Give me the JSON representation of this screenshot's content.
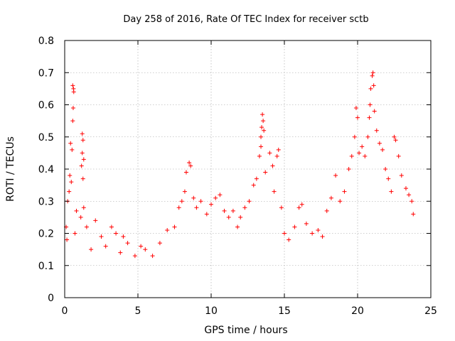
{
  "chart_data": {
    "type": "scatter",
    "title": "Day 258 of 2016, Rate Of TEC Index for receiver sctb",
    "xlabel": "GPS time / hours",
    "ylabel": "ROTI / TECUs",
    "xlim": [
      0,
      25
    ],
    "ylim": [
      0,
      0.8
    ],
    "x_ticks": [
      0,
      5,
      10,
      15,
      20,
      25
    ],
    "y_ticks": [
      0,
      0.1,
      0.2,
      0.3,
      0.4,
      0.5,
      0.6,
      0.7,
      0.8
    ],
    "x_tick_labels": [
      "0",
      "5",
      "10",
      "15",
      "20",
      "25"
    ],
    "y_tick_labels": [
      "0",
      "0.1",
      "0.2",
      "0.3",
      "0.4",
      "0.5",
      "0.6",
      "0.7",
      "0.8"
    ],
    "grid": true,
    "marker": "+",
    "color": "#ff0000",
    "series": [
      {
        "name": "ROTI",
        "points": [
          [
            0.55,
            0.66
          ],
          [
            0.6,
            0.65
          ],
          [
            0.62,
            0.64
          ],
          [
            0.58,
            0.59
          ],
          [
            0.55,
            0.55
          ],
          [
            0.4,
            0.48
          ],
          [
            0.5,
            0.46
          ],
          [
            0.35,
            0.38
          ],
          [
            0.45,
            0.36
          ],
          [
            0.3,
            0.33
          ],
          [
            1.2,
            0.51
          ],
          [
            1.25,
            0.49
          ],
          [
            1.2,
            0.45
          ],
          [
            1.3,
            0.43
          ],
          [
            1.15,
            0.41
          ],
          [
            1.25,
            0.37
          ],
          [
            1.3,
            0.28
          ],
          [
            0.2,
            0.3
          ],
          [
            0.8,
            0.27
          ],
          [
            1.1,
            0.25
          ],
          [
            0.1,
            0.22
          ],
          [
            0.15,
            0.18
          ],
          [
            0.7,
            0.2
          ],
          [
            1.5,
            0.22
          ],
          [
            2.1,
            0.24
          ],
          [
            2.5,
            0.19
          ],
          [
            3.2,
            0.22
          ],
          [
            3.5,
            0.2
          ],
          [
            4.0,
            0.19
          ],
          [
            4.3,
            0.17
          ],
          [
            1.8,
            0.15
          ],
          [
            2.8,
            0.16
          ],
          [
            3.8,
            0.14
          ],
          [
            4.8,
            0.13
          ],
          [
            5.2,
            0.16
          ],
          [
            5.5,
            0.15
          ],
          [
            6.0,
            0.13
          ],
          [
            6.5,
            0.17
          ],
          [
            7.0,
            0.21
          ],
          [
            7.5,
            0.22
          ],
          [
            7.8,
            0.28
          ],
          [
            8.0,
            0.3
          ],
          [
            8.2,
            0.33
          ],
          [
            8.5,
            0.42
          ],
          [
            8.6,
            0.41
          ],
          [
            8.3,
            0.39
          ],
          [
            8.8,
            0.31
          ],
          [
            9.0,
            0.28
          ],
          [
            9.3,
            0.3
          ],
          [
            9.7,
            0.26
          ],
          [
            10.0,
            0.29
          ],
          [
            10.3,
            0.31
          ],
          [
            10.6,
            0.32
          ],
          [
            10.9,
            0.27
          ],
          [
            11.2,
            0.25
          ],
          [
            11.5,
            0.27
          ],
          [
            11.8,
            0.22
          ],
          [
            12.0,
            0.25
          ],
          [
            12.3,
            0.28
          ],
          [
            12.6,
            0.3
          ],
          [
            12.9,
            0.35
          ],
          [
            13.1,
            0.37
          ],
          [
            13.3,
            0.44
          ],
          [
            13.4,
            0.5
          ],
          [
            13.45,
            0.53
          ],
          [
            13.5,
            0.57
          ],
          [
            13.55,
            0.55
          ],
          [
            13.6,
            0.52
          ],
          [
            13.4,
            0.47
          ],
          [
            13.7,
            0.39
          ],
          [
            14.0,
            0.45
          ],
          [
            14.2,
            0.41
          ],
          [
            14.5,
            0.44
          ],
          [
            14.6,
            0.46
          ],
          [
            14.3,
            0.33
          ],
          [
            14.8,
            0.28
          ],
          [
            15.0,
            0.2
          ],
          [
            15.3,
            0.18
          ],
          [
            15.7,
            0.22
          ],
          [
            16.0,
            0.28
          ],
          [
            16.2,
            0.29
          ],
          [
            16.5,
            0.23
          ],
          [
            16.9,
            0.2
          ],
          [
            17.3,
            0.21
          ],
          [
            17.6,
            0.19
          ],
          [
            17.9,
            0.27
          ],
          [
            18.2,
            0.31
          ],
          [
            18.5,
            0.38
          ],
          [
            18.8,
            0.3
          ],
          [
            19.1,
            0.33
          ],
          [
            19.4,
            0.4
          ],
          [
            19.6,
            0.44
          ],
          [
            19.8,
            0.5
          ],
          [
            20.0,
            0.56
          ],
          [
            19.9,
            0.59
          ],
          [
            20.1,
            0.45
          ],
          [
            20.3,
            0.47
          ],
          [
            20.5,
            0.44
          ],
          [
            20.7,
            0.5
          ],
          [
            20.8,
            0.56
          ],
          [
            20.85,
            0.6
          ],
          [
            20.9,
            0.65
          ],
          [
            21.0,
            0.69
          ],
          [
            21.05,
            0.7
          ],
          [
            21.1,
            0.66
          ],
          [
            21.15,
            0.58
          ],
          [
            21.3,
            0.52
          ],
          [
            21.5,
            0.48
          ],
          [
            21.7,
            0.46
          ],
          [
            21.9,
            0.4
          ],
          [
            22.1,
            0.37
          ],
          [
            22.3,
            0.33
          ],
          [
            22.5,
            0.5
          ],
          [
            22.6,
            0.49
          ],
          [
            22.8,
            0.44
          ],
          [
            23.0,
            0.38
          ],
          [
            23.3,
            0.34
          ],
          [
            23.5,
            0.32
          ],
          [
            23.7,
            0.3
          ],
          [
            23.8,
            0.26
          ]
        ]
      }
    ]
  }
}
